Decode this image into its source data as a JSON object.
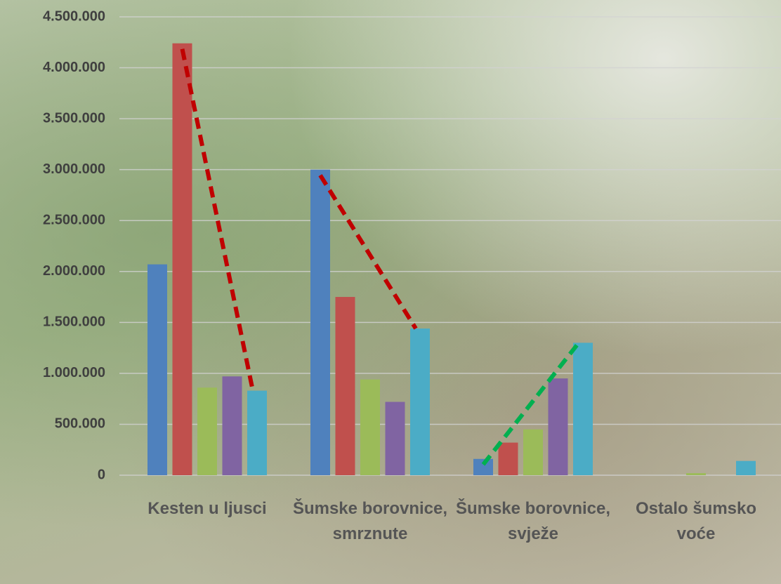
{
  "chart_data": {
    "type": "bar",
    "categories": [
      "Kesten u ljusci",
      "Šumske borovnice, smrznute",
      "Šumske borovnice, svježe",
      "Ostalo šumsko voće"
    ],
    "series": [
      {
        "color": "#4f81bd",
        "values": [
          2070000,
          3000000,
          160000,
          0
        ]
      },
      {
        "color": "#c0504d",
        "values": [
          4240000,
          1750000,
          320000,
          0
        ]
      },
      {
        "color": "#9bbb59",
        "values": [
          860000,
          940000,
          450000,
          20000
        ]
      },
      {
        "color": "#8064a2",
        "values": [
          970000,
          720000,
          950000,
          0
        ]
      },
      {
        "color": "#4bacc6",
        "values": [
          830000,
          1440000,
          1300000,
          140000
        ]
      }
    ],
    "ylim": [
      0,
      4500000
    ],
    "yticks": [
      0,
      {
        "value": 500000,
        "label": "500.000"
      },
      {
        "value": 1000000,
        "label": "1.000.000"
      },
      {
        "value": 1500000,
        "label": "1.500.000"
      },
      {
        "value": 2000000,
        "label": "2.000.000"
      },
      {
        "value": 2500000,
        "label": "2.500.000"
      },
      {
        "value": 3000000,
        "label": "3.000.000"
      },
      {
        "value": 3500000,
        "label": "3.500.000"
      },
      {
        "value": 4000000,
        "label": "4.000.000"
      },
      {
        "value": 4500000,
        "label": "4.500.000"
      }
    ],
    "grid": true
  }
}
